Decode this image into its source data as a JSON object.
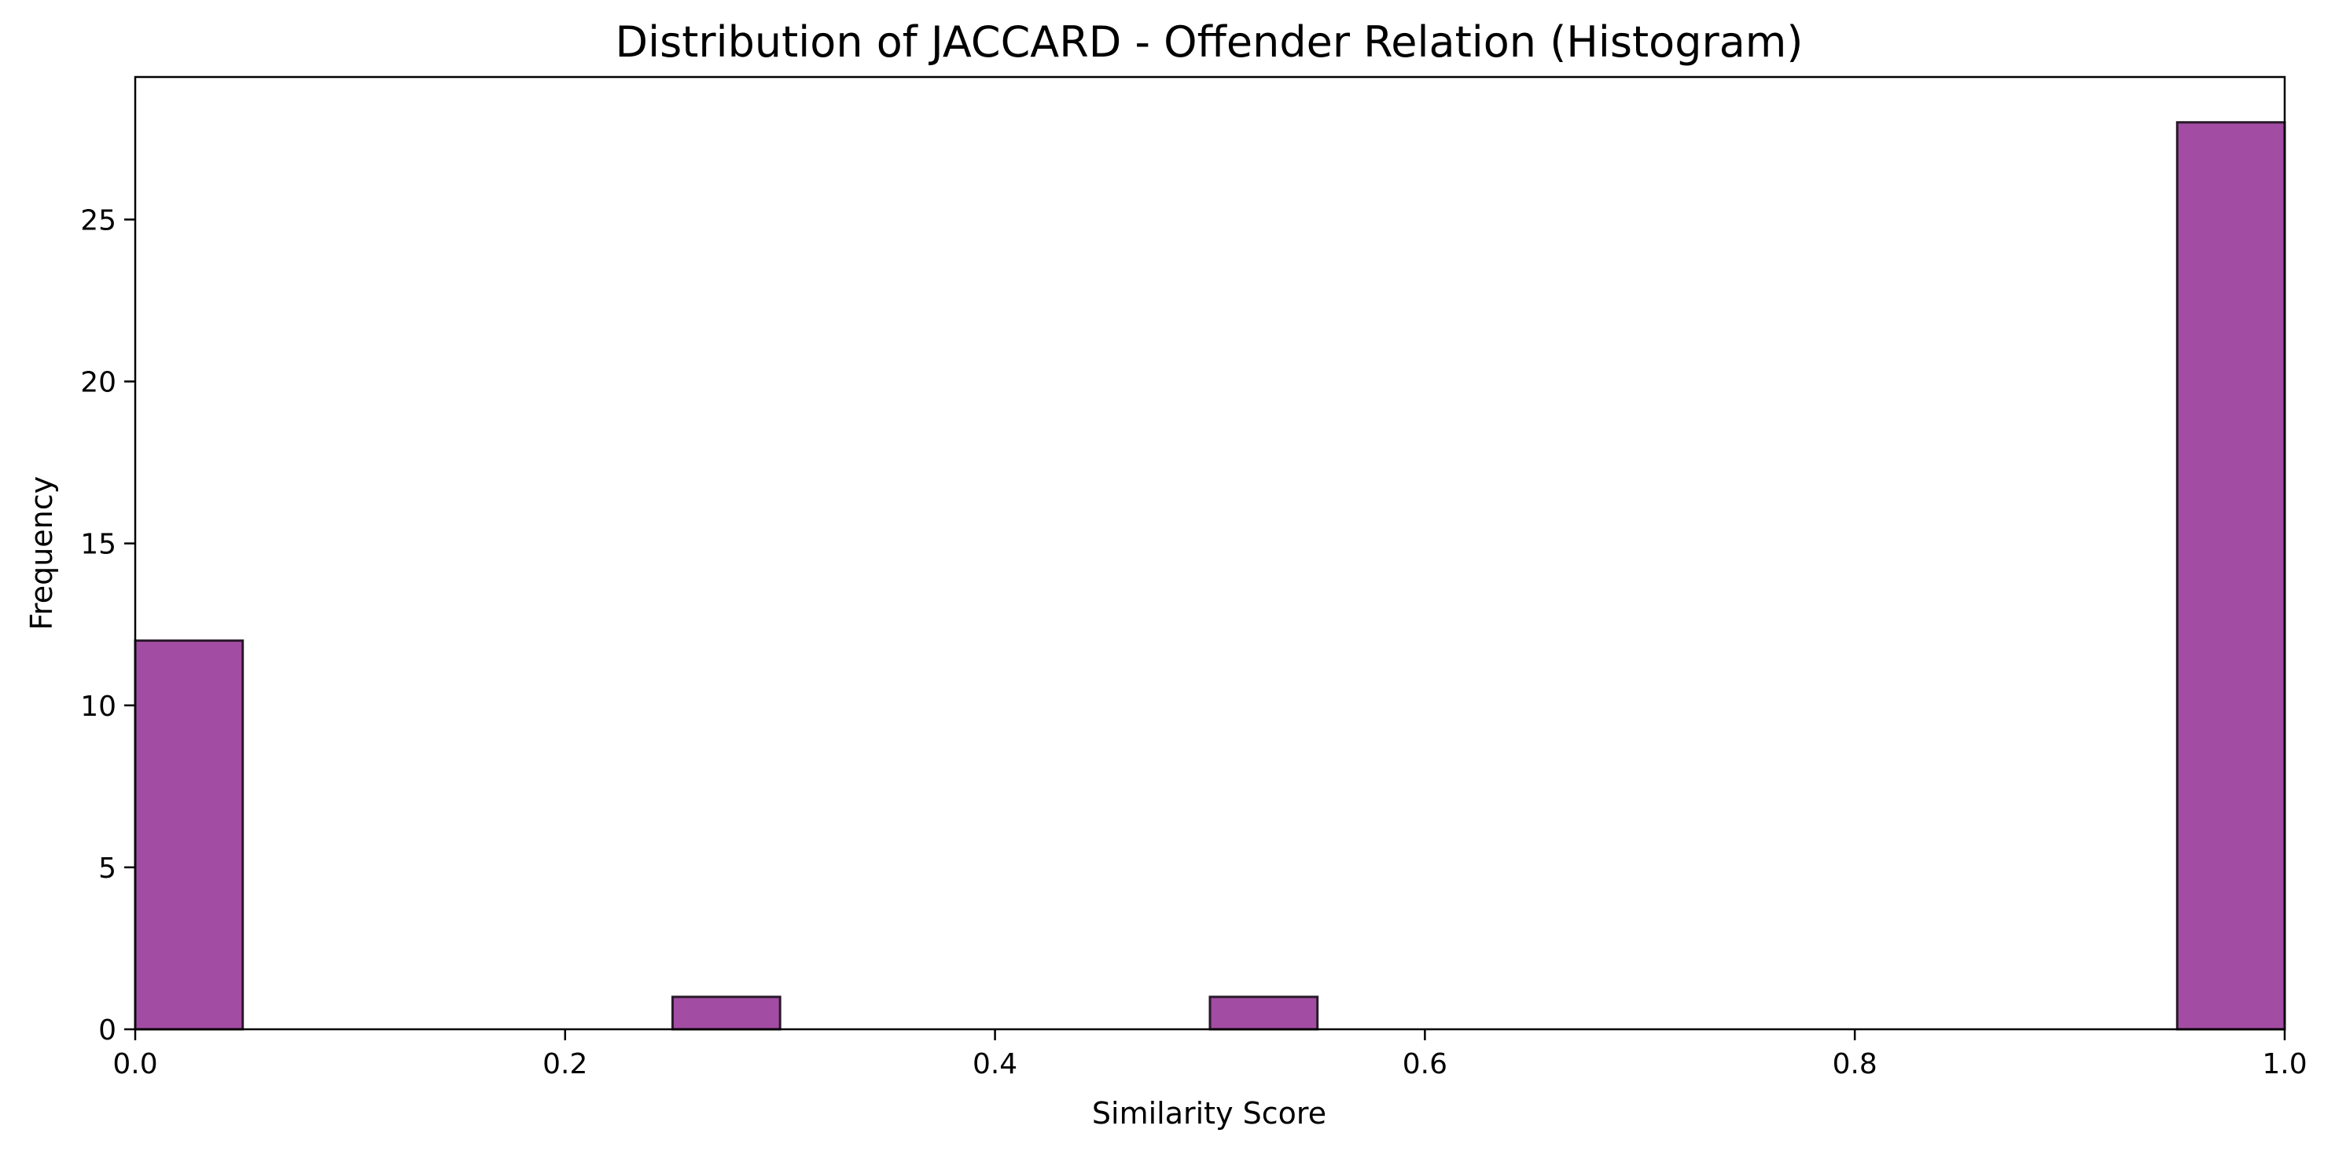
{
  "chart_data": {
    "type": "bar",
    "title": "Distribution of JACCARD - Offender Relation (Histogram)",
    "xlabel": "Similarity Score",
    "ylabel": "Frequency",
    "xlim": [
      0.0,
      1.0
    ],
    "ylim": [
      0,
      29.4
    ],
    "bin_width": 0.05,
    "bins": [
      {
        "x0": 0.0,
        "x1": 0.05,
        "count": 12
      },
      {
        "x0": 0.25,
        "x1": 0.3,
        "count": 1
      },
      {
        "x0": 0.5,
        "x1": 0.55,
        "count": 1
      },
      {
        "x0": 0.95,
        "x1": 1.0,
        "count": 28
      }
    ],
    "xticks": [
      "0.0",
      "0.2",
      "0.4",
      "0.6",
      "0.8",
      "1.0"
    ],
    "xtick_values": [
      0.0,
      0.2,
      0.4,
      0.6,
      0.8,
      1.0
    ],
    "yticks": [
      "0",
      "5",
      "10",
      "15",
      "20",
      "25"
    ],
    "ytick_values": [
      0,
      5,
      10,
      15,
      20,
      25
    ],
    "grid": false,
    "colors": {
      "bar_fill": "#a34ca3",
      "bar_edge": "#2a1a2a"
    }
  }
}
